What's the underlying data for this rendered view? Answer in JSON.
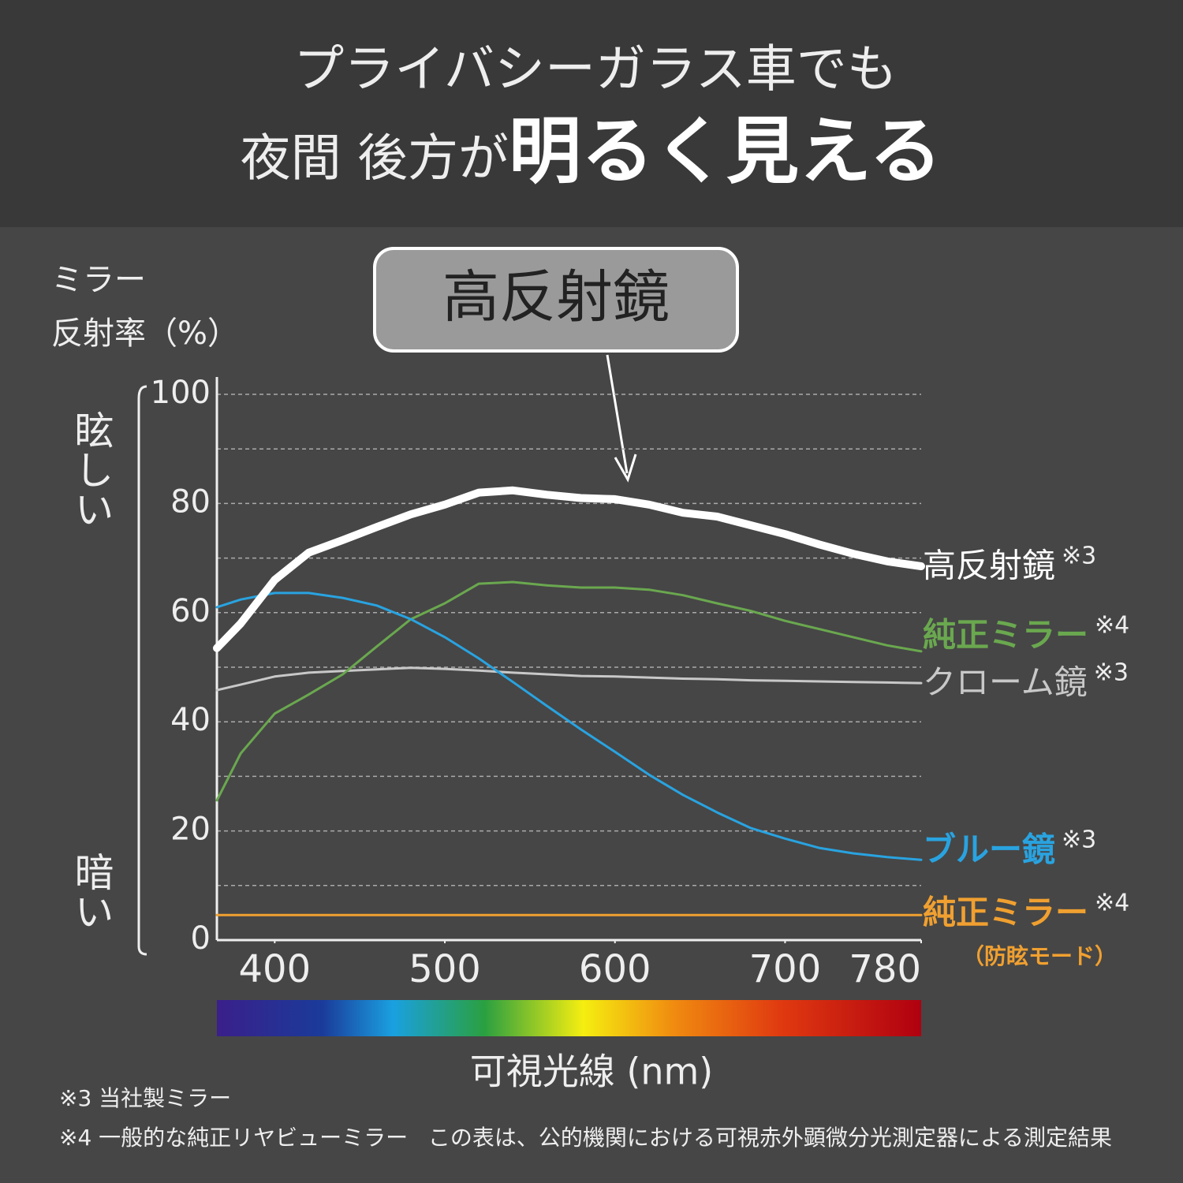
{
  "header": {
    "line1": "プライバシーガラス車でも",
    "line2a": "夜間 後方が",
    "line2b": "明るく見える"
  },
  "callout": "高反射鏡",
  "side_labels": {
    "top": "眩しい",
    "bottom": "暗い"
  },
  "footnotes": [
    "※3 当社製ミラー",
    "※4 一般的な純正リヤビューミラー"
  ],
  "source_note": "この表は、公的機関における可視赤外顕微分光測定器による測定結果",
  "chart_data": {
    "type": "line",
    "y_label_lines": [
      "ミラー",
      "反射率（%）"
    ],
    "x_label": "可視光線 (nm)",
    "x": [
      366,
      380,
      400,
      420,
      440,
      460,
      480,
      500,
      520,
      540,
      560,
      580,
      600,
      620,
      640,
      660,
      680,
      700,
      720,
      740,
      760,
      780
    ],
    "xlim": [
      366,
      780
    ],
    "xticks": [
      400,
      500,
      600,
      700,
      780
    ],
    "ylim": [
      0,
      100
    ],
    "yticks": [
      0,
      20,
      40,
      60,
      80,
      100
    ],
    "minor_yticks": [
      10,
      30,
      50,
      70,
      90
    ],
    "grid": true,
    "series": [
      {
        "name": "高反射鏡",
        "note": "※3",
        "color": "#ffffff",
        "width": 10,
        "values": [
          53.5,
          58,
          66,
          71,
          73.3,
          75.7,
          78,
          79.8,
          82,
          82.4,
          81.6,
          81,
          80.8,
          79.8,
          78.3,
          77.6,
          76,
          74.4,
          72.5,
          70.8,
          69.4,
          68.5
        ]
      },
      {
        "name": "純正ミラー",
        "note": "※4",
        "color": "#6aa84f",
        "width": 3,
        "values": [
          25.6,
          34.2,
          41.5,
          45,
          48.7,
          53.8,
          58.8,
          61.7,
          65.3,
          65.6,
          65,
          64.6,
          64.6,
          64.2,
          63.2,
          61.7,
          60.3,
          58.5,
          57,
          55.5,
          54,
          52.9
        ]
      },
      {
        "name": "クローム鏡",
        "note": "※3",
        "color": "#c8c8c8",
        "width": 3,
        "values": [
          45.8,
          46.8,
          48.3,
          49,
          49.3,
          49.6,
          49.9,
          49.7,
          49.4,
          49,
          48.7,
          48.4,
          48.3,
          48.1,
          47.9,
          47.8,
          47.6,
          47.5,
          47.4,
          47.3,
          47.2,
          47.1
        ]
      },
      {
        "name": "ブルー鏡",
        "note": "※3",
        "color": "#29a3e0",
        "width": 3,
        "values": [
          61,
          62.4,
          63.6,
          63.6,
          62.7,
          61.3,
          58.8,
          55.5,
          51.6,
          47.3,
          42.9,
          38.6,
          34.5,
          30.3,
          26.6,
          23.4,
          20.5,
          18.6,
          16.9,
          15.9,
          15.2,
          14.7
        ]
      },
      {
        "name": "純正ミラー",
        "note": "※4",
        "mode": "（防眩モード）",
        "color": "#f0a030",
        "width": 3,
        "values": [
          4.6,
          4.6,
          4.6,
          4.6,
          4.6,
          4.6,
          4.6,
          4.6,
          4.6,
          4.6,
          4.6,
          4.6,
          4.6,
          4.6,
          4.6,
          4.6,
          4.6,
          4.6,
          4.6,
          4.6,
          4.6,
          4.6
        ]
      }
    ]
  }
}
